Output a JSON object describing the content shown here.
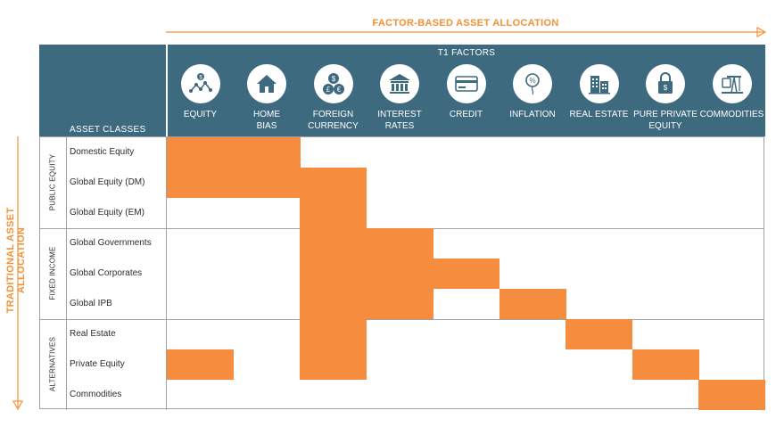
{
  "top_title": "FACTOR-BASED ASSET ALLOCATION",
  "side_title": "TRADITIONAL ASSET ALLOCATION",
  "header": {
    "asset_classes_label": "ASSET CLASSES",
    "t1_label": "T1 FACTORS"
  },
  "factors": [
    {
      "label": "EQUITY",
      "icon": "equity-network-icon"
    },
    {
      "label": "HOME\nBIAS",
      "icon": "house-icon"
    },
    {
      "label": "FOREIGN\nCURRENCY",
      "icon": "coins-icon"
    },
    {
      "label": "INTEREST\nRATES",
      "icon": "bank-icon"
    },
    {
      "label": "CREDIT",
      "icon": "credit-card-icon"
    },
    {
      "label": "INFLATION",
      "icon": "percent-balloon-icon"
    },
    {
      "label": "REAL ESTATE",
      "icon": "buildings-icon"
    },
    {
      "label": "PURE PRIVATE\nEQUITY",
      "icon": "locked-bag-icon"
    },
    {
      "label": "COMMODITIES",
      "icon": "oil-pump-icon"
    }
  ],
  "groups": [
    {
      "label": "PUBLIC EQUITY",
      "rows": [
        "Domestic Equity",
        "Global Equity (DM)",
        "Global Equity (EM)"
      ]
    },
    {
      "label": "FIXED INCOME",
      "rows": [
        "Global Governments",
        "Global Corporates",
        "Global IPB"
      ]
    },
    {
      "label": "ALTERNATIVES",
      "rows": [
        "Real Estate",
        "Private Equity",
        "Commodities"
      ]
    }
  ],
  "exposure_matrix": [
    [
      1,
      1,
      0,
      0,
      0,
      0,
      0,
      0,
      0
    ],
    [
      1,
      1,
      1,
      0,
      0,
      0,
      0,
      0,
      0
    ],
    [
      0,
      0,
      1,
      0,
      0,
      0,
      0,
      0,
      0
    ],
    [
      0,
      0,
      1,
      1,
      0,
      0,
      0,
      0,
      0
    ],
    [
      0,
      0,
      1,
      1,
      1,
      0,
      0,
      0,
      0
    ],
    [
      0,
      0,
      1,
      1,
      0,
      1,
      0,
      0,
      0
    ],
    [
      0,
      0,
      1,
      0,
      0,
      0,
      1,
      0,
      0
    ],
    [
      1,
      0,
      1,
      0,
      0,
      0,
      0,
      1,
      0
    ],
    [
      0,
      0,
      0,
      0,
      0,
      0,
      0,
      0,
      1
    ]
  ],
  "colors": {
    "header": "#3d6a7e",
    "highlight": "#f68c3d",
    "accent_text": "#f39034"
  }
}
